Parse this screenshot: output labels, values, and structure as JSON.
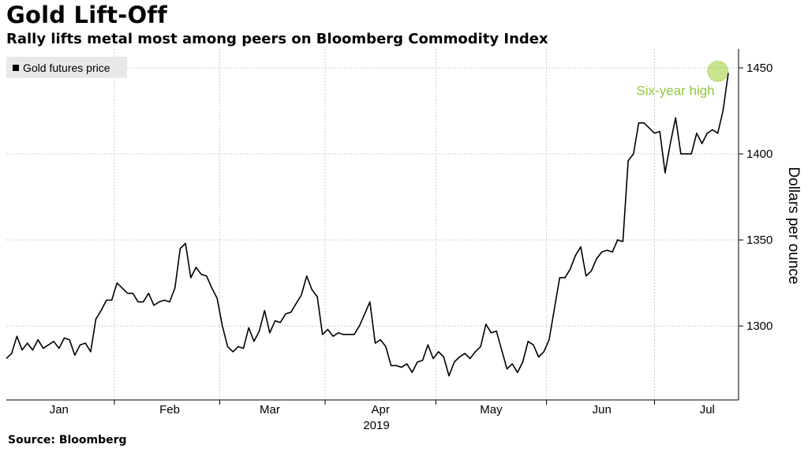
{
  "header": {
    "title": "Gold Lift-Off",
    "subtitle": "Rally lifts metal most among peers on Bloomberg Commodity Index"
  },
  "footer": {
    "source": "Source: Bloomberg"
  },
  "colors": {
    "line": "#000000",
    "grid": "#cccccc",
    "highlight": "#9acd32",
    "highlight_text": "#8cc63f"
  },
  "chart_data": {
    "type": "line",
    "title": "Gold Lift-Off",
    "subtitle": "Rally lifts metal most among peers on Bloomberg Commodity Index",
    "ylabel": "Dollars per ounce",
    "xlabel_year": "2019",
    "ylim": [
      1257,
      1461
    ],
    "y_ticks": [
      1300,
      1350,
      1400,
      1450
    ],
    "y_axis_side": "right",
    "grid": true,
    "legend": {
      "position": "top-left",
      "entries": [
        "Gold futures price"
      ]
    },
    "months": [
      {
        "label": "Jan",
        "index": 10
      },
      {
        "label": "Feb",
        "index": 31
      },
      {
        "label": "Mar",
        "index": 50
      },
      {
        "label": "Apr",
        "index": 71
      },
      {
        "label": "May",
        "index": 92
      },
      {
        "label": "Jun",
        "index": 113
      },
      {
        "label": "Jul",
        "index": 133
      }
    ],
    "annotation": {
      "text": "Six-year high",
      "index": 135,
      "value": 1448
    },
    "series": [
      {
        "name": "Gold futures price",
        "values": [
          1281,
          1284,
          1294,
          1286,
          1290,
          1286,
          1292,
          1287,
          1289,
          1291,
          1287,
          1293,
          1292,
          1283,
          1289,
          1290,
          1285,
          1304,
          1309,
          1315,
          1315,
          1325,
          1322,
          1319,
          1319,
          1314,
          1314,
          1319,
          1312,
          1314,
          1315,
          1314,
          1322,
          1345,
          1348,
          1328,
          1334,
          1330,
          1329,
          1322,
          1316,
          1300,
          1288,
          1285,
          1288,
          1287,
          1299,
          1291,
          1297,
          1309,
          1296,
          1303,
          1302,
          1307,
          1308,
          1313,
          1318,
          1329,
          1321,
          1317,
          1295,
          1298,
          1294,
          1296,
          1295,
          1295,
          1295,
          1300,
          1307,
          1314,
          1290,
          1292,
          1288,
          1277,
          1277,
          1276,
          1278,
          1273,
          1279,
          1280,
          1289,
          1281,
          1285,
          1282,
          1271,
          1279,
          1282,
          1284,
          1281,
          1285,
          1288,
          1301,
          1296,
          1297,
          1286,
          1275,
          1278,
          1273,
          1279,
          1291,
          1289,
          1282,
          1285,
          1292,
          1310,
          1328,
          1328,
          1333,
          1341,
          1346,
          1329,
          1332,
          1339,
          1343,
          1344,
          1343,
          1350,
          1349,
          1396,
          1400,
          1418,
          1418,
          1415,
          1412,
          1413,
          1389,
          1406,
          1421,
          1400,
          1400,
          1400,
          1412,
          1406,
          1412,
          1414,
          1412,
          1425,
          1447
        ]
      }
    ]
  }
}
